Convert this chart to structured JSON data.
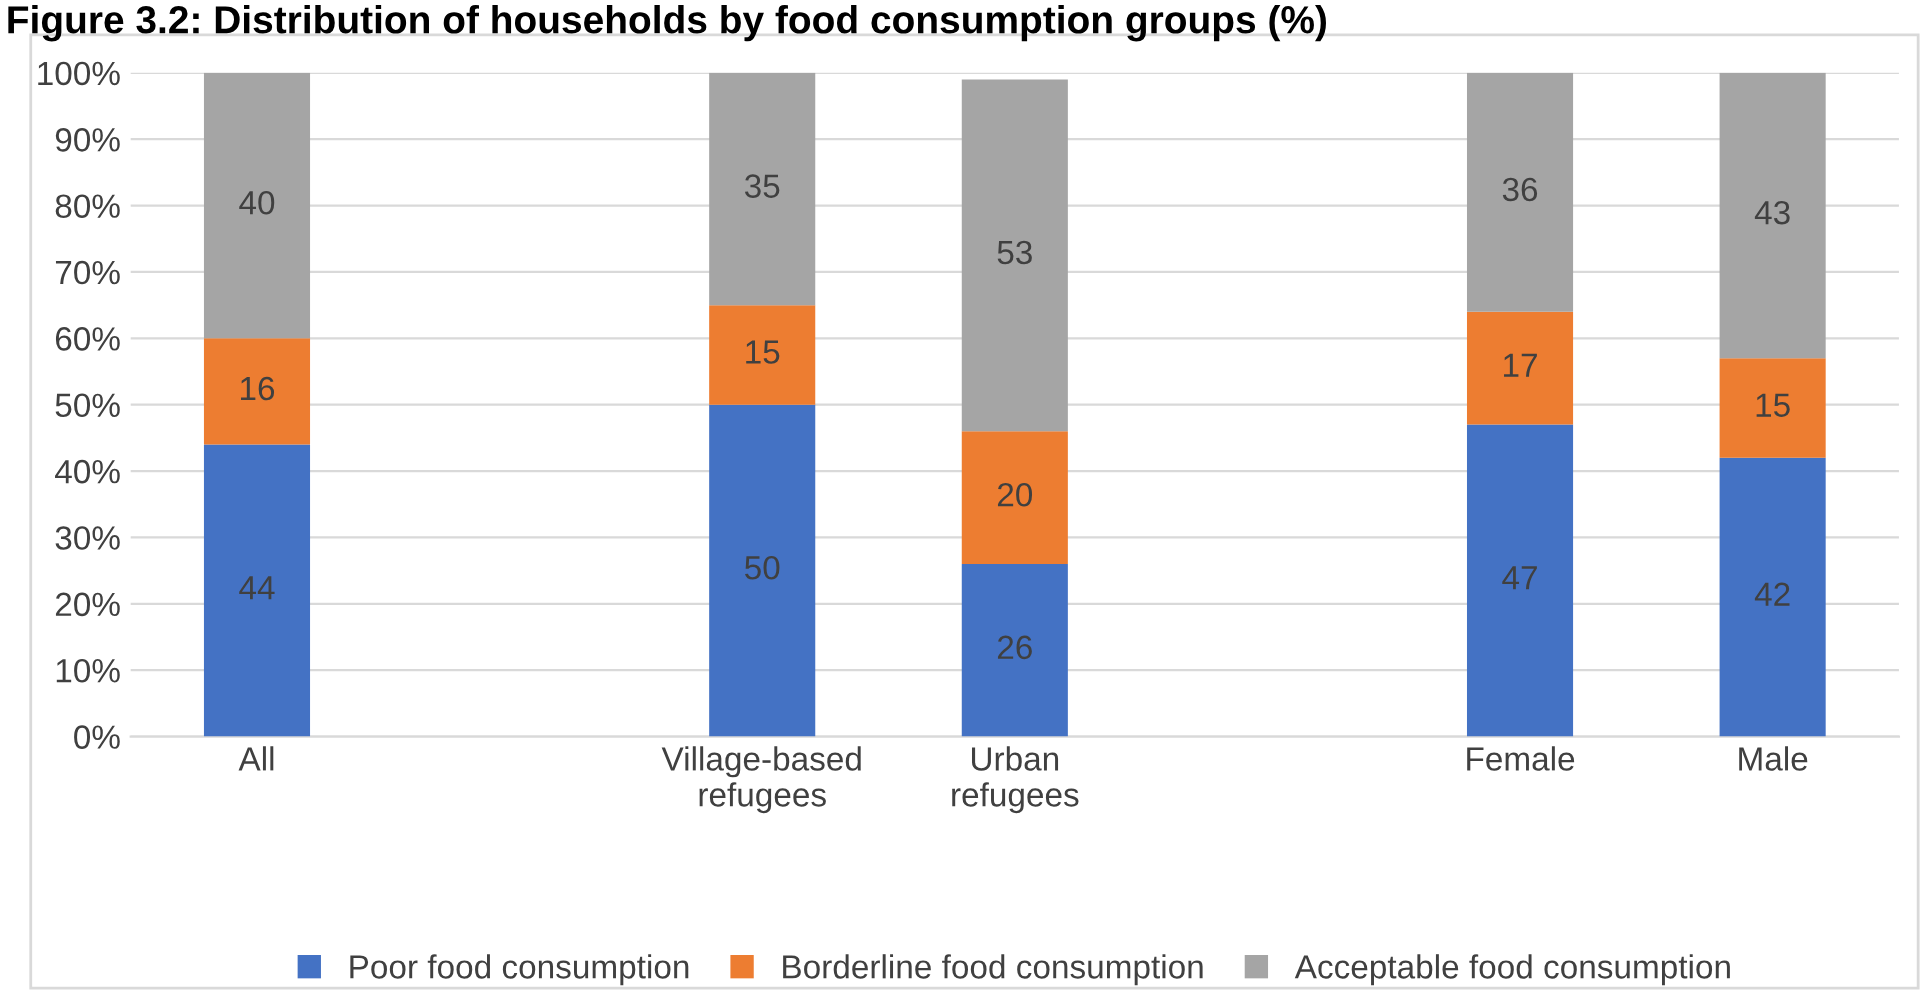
{
  "chart_data": {
    "type": "bar",
    "stacked": true,
    "title": "Figure 3.2: Distribution of households by food consumption groups (%)",
    "categories": [
      "All",
      null,
      "Village-based\nrefugees",
      "Urban\nrefugees",
      null,
      "Female",
      "Male"
    ],
    "series": [
      {
        "name": "Poor food consumption",
        "color": "#4472c4",
        "values": [
          44,
          null,
          50,
          26,
          null,
          47,
          42
        ]
      },
      {
        "name": "Borderline food consumption",
        "color": "#ed7d31",
        "values": [
          16,
          null,
          15,
          20,
          null,
          17,
          15
        ]
      },
      {
        "name": "Acceptable food consumption",
        "color": "#a5a5a5",
        "values": [
          40,
          null,
          35,
          53,
          null,
          36,
          43
        ]
      }
    ],
    "ylim": [
      0,
      100
    ],
    "yticks": [
      {
        "value": 0,
        "label": "0%"
      },
      {
        "value": 10,
        "label": "10%"
      },
      {
        "value": 20,
        "label": "20%"
      },
      {
        "value": 30,
        "label": "30%"
      },
      {
        "value": 40,
        "label": "40%"
      },
      {
        "value": 50,
        "label": "50%"
      },
      {
        "value": 60,
        "label": "60%"
      },
      {
        "value": 70,
        "label": "70%"
      },
      {
        "value": 80,
        "label": "80%"
      },
      {
        "value": 90,
        "label": "90%"
      },
      {
        "value": 100,
        "label": "100%"
      }
    ],
    "grid": "y",
    "legend": "bottom",
    "data_labels": true
  }
}
